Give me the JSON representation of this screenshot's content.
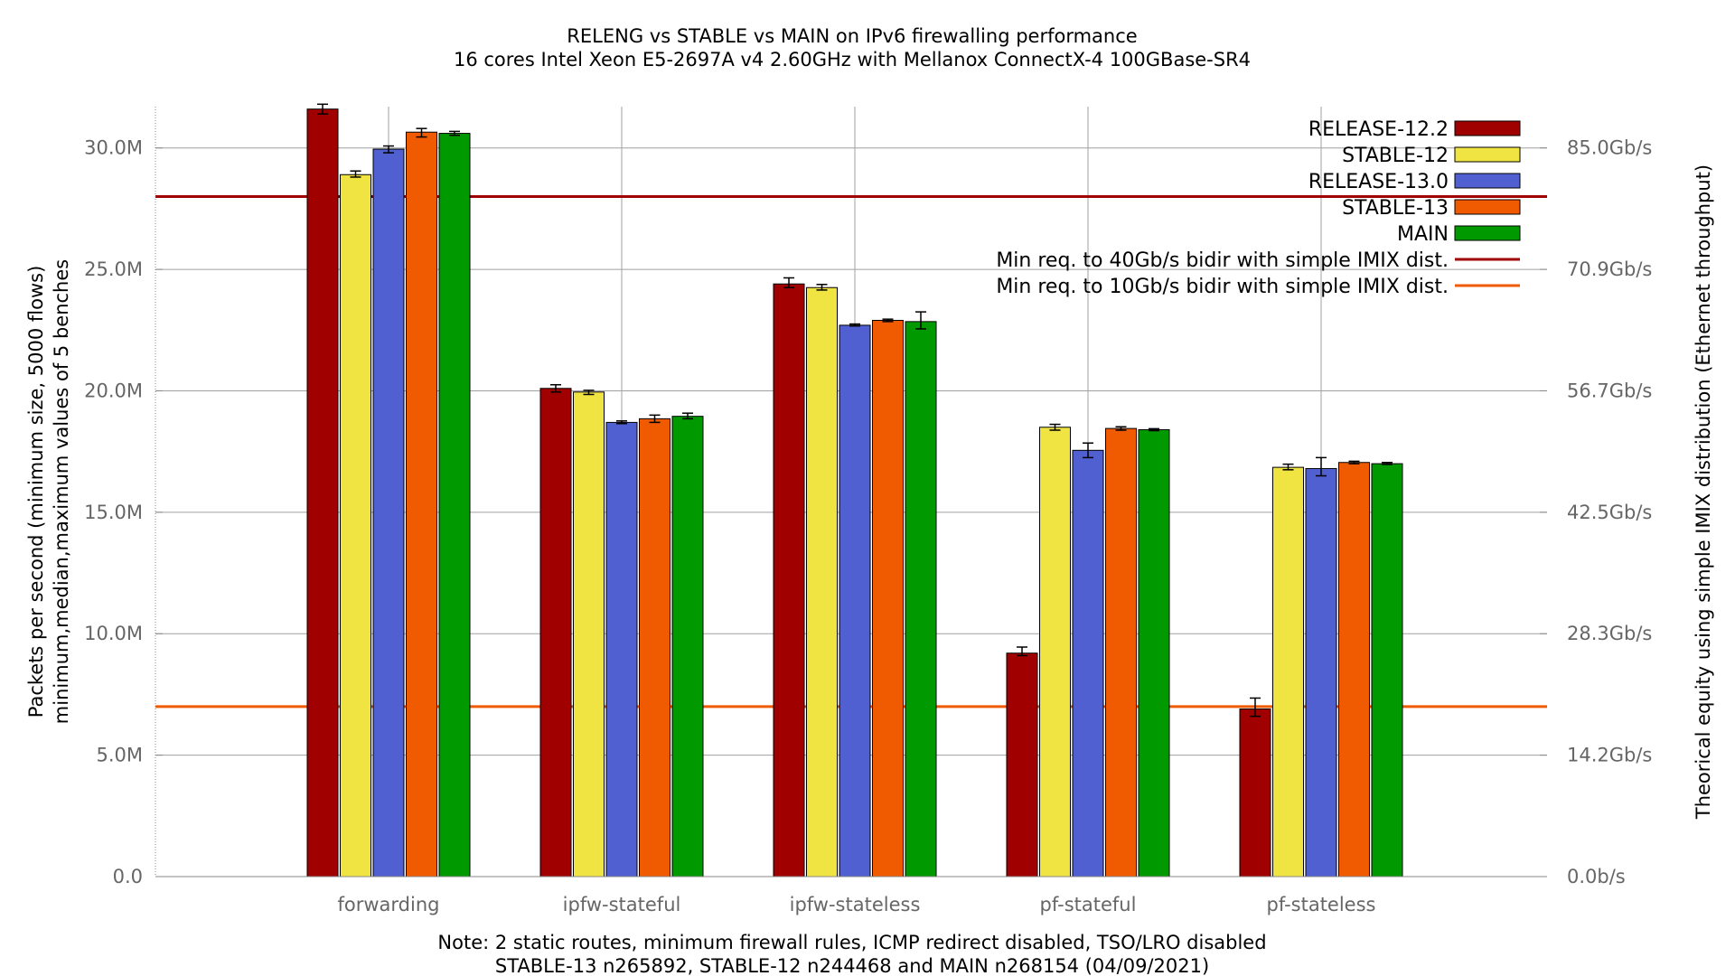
{
  "chart_data": {
    "type": "bar",
    "title": "RELENG vs STABLE vs MAIN on IPv6 firewalling performance",
    "subtitle": "16 cores Intel Xeon E5-2697A v4 2.60GHz with Mellanox ConnectX-4 100GBase-SR4",
    "ylabel": "Packets per second (minimum size, 5000 flows)",
    "ylabel2": "minimum,median,maximum values of 5 benches",
    "y2label": "Theorical equity using simple IMIX distribution (Ethernet throughput)",
    "ylim": [
      0,
      31700000
    ],
    "yticks": [
      0,
      5000000,
      10000000,
      15000000,
      20000000,
      25000000,
      30000000
    ],
    "ytick_labels": [
      "0.0",
      "5.0M",
      "10.0M",
      "15.0M",
      "20.0M",
      "25.0M",
      "30.0M"
    ],
    "y2tick_labels": [
      "0.0b/s",
      "14.2Gb/s",
      "28.3Gb/s",
      "42.5Gb/s",
      "56.7Gb/s",
      "70.9Gb/s",
      "85.0Gb/s"
    ],
    "categories": [
      "forwarding",
      "ipfw-stateful",
      "ipfw-stateless",
      "pf-stateful",
      "pf-stateless"
    ],
    "series": [
      {
        "name": "RELEASE-12.2",
        "color": "#a00000",
        "values": [
          31600000,
          20100000,
          24400000,
          9200000,
          6900000
        ],
        "min": [
          31400000,
          19950000,
          24250000,
          9100000,
          6600000
        ],
        "max": [
          31800000,
          20250000,
          24650000,
          9450000,
          7350000
        ]
      },
      {
        "name": "STABLE-12",
        "color": "#f0e442",
        "values": [
          28900000,
          19950000,
          24250000,
          18500000,
          16850000
        ],
        "min": [
          28800000,
          19850000,
          24150000,
          18380000,
          16750000
        ],
        "max": [
          29050000,
          20020000,
          24380000,
          18620000,
          16980000
        ]
      },
      {
        "name": "RELEASE-13.0",
        "color": "#5060d0",
        "values": [
          29950000,
          18700000,
          22700000,
          17550000,
          16800000
        ],
        "min": [
          29800000,
          18650000,
          22670000,
          17250000,
          16500000
        ],
        "max": [
          30080000,
          18760000,
          22750000,
          17850000,
          17250000
        ]
      },
      {
        "name": "STABLE-13",
        "color": "#f05a00",
        "values": [
          30650000,
          18850000,
          22900000,
          18450000,
          17050000
        ],
        "min": [
          30450000,
          18700000,
          22850000,
          18380000,
          17000000
        ],
        "max": [
          30800000,
          19000000,
          22950000,
          18520000,
          17100000
        ]
      },
      {
        "name": "MAIN",
        "color": "#009900",
        "values": [
          30600000,
          18950000,
          22850000,
          18400000,
          17000000
        ],
        "min": [
          30520000,
          18850000,
          22550000,
          18360000,
          16970000
        ],
        "max": [
          30680000,
          19080000,
          23250000,
          18440000,
          17050000
        ]
      }
    ],
    "hlines": [
      {
        "name": "Min req. to 40Gb/s bidir with simple IMIX dist.",
        "value": 28000000,
        "color": "#a00000"
      },
      {
        "name": "Min req. to 10Gb/s bidir with simple IMIX dist.",
        "value": 7000000,
        "color": "#f05a00"
      }
    ],
    "legend_position": "top-right",
    "grid": true,
    "note_line1": "Note: 2 static routes, minimum firewall rules, ICMP redirect disabled, TSO/LRO disabled",
    "note_line2": "STABLE-13 n265892, STABLE-12 n244468 and MAIN n268154 (04/09/2021)"
  }
}
